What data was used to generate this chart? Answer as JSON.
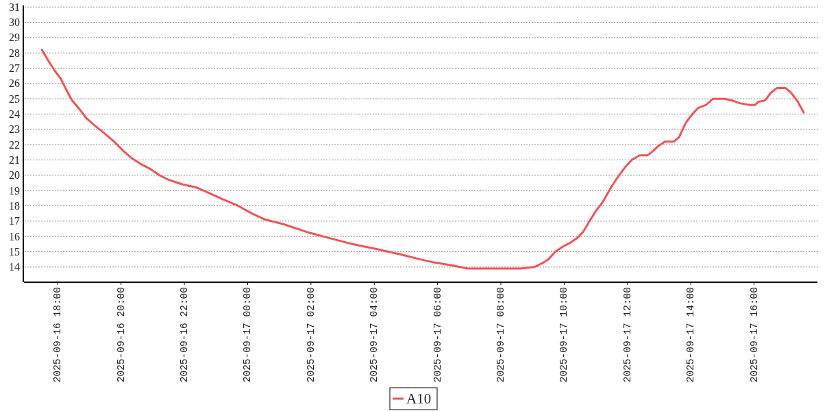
{
  "chart_data": {
    "type": "line",
    "x": [
      "2025-09-16T17:30",
      "2025-09-16T17:42",
      "2025-09-16T17:55",
      "2025-09-16T18:06",
      "2025-09-16T18:16",
      "2025-09-16T18:27",
      "2025-09-16T18:44",
      "2025-09-16T18:55",
      "2025-09-16T19:12",
      "2025-09-16T19:30",
      "2025-09-16T19:47",
      "2025-09-16T20:04",
      "2025-09-16T20:21",
      "2025-09-16T20:39",
      "2025-09-16T20:56",
      "2025-09-16T21:13",
      "2025-09-16T21:30",
      "2025-09-16T21:57",
      "2025-09-16T22:23",
      "2025-09-16T22:49",
      "2025-09-16T23:15",
      "2025-09-16T23:42",
      "2025-09-17T00:08",
      "2025-09-17T00:33",
      "2025-09-17T01:08",
      "2025-09-17T01:51",
      "2025-09-17T02:34",
      "2025-09-17T03:18",
      "2025-09-17T04:01",
      "2025-09-17T04:27",
      "2025-09-17T04:53",
      "2025-09-17T05:27",
      "2025-09-17T05:53",
      "2025-09-17T06:28",
      "2025-09-17T06:57",
      "2025-09-17T07:46",
      "2025-09-17T08:38",
      "2025-09-17T09:04",
      "2025-09-17T09:21",
      "2025-09-17T09:30",
      "2025-09-17T09:43",
      "2025-09-17T09:56",
      "2025-09-17T10:12",
      "2025-09-17T10:25",
      "2025-09-17T10:36",
      "2025-09-17T10:48",
      "2025-09-17T11:01",
      "2025-09-17T11:14",
      "2025-09-17T11:27",
      "2025-09-17T11:40",
      "2025-09-17T11:55",
      "2025-09-17T12:08",
      "2025-09-17T12:23",
      "2025-09-17T12:38",
      "2025-09-17T12:49",
      "2025-09-17T12:58",
      "2025-09-17T13:11",
      "2025-09-17T13:28",
      "2025-09-17T13:38",
      "2025-09-17T13:50",
      "2025-09-17T14:03",
      "2025-09-17T14:14",
      "2025-09-17T14:29",
      "2025-09-17T14:42",
      "2025-09-17T15:04",
      "2025-09-17T15:17",
      "2025-09-17T15:34",
      "2025-09-17T15:51",
      "2025-09-17T16:02",
      "2025-09-17T16:08",
      "2025-09-17T16:21",
      "2025-09-17T16:32",
      "2025-09-17T16:43",
      "2025-09-17T17:00",
      "2025-09-17T17:10",
      "2025-09-17T17:23",
      "2025-09-17T17:34"
    ],
    "series": [
      {
        "name": "A10",
        "color": "#ee5555",
        "values": [
          28.2,
          27.5,
          26.8,
          26.3,
          25.6,
          24.9,
          24.2,
          23.7,
          23.2,
          22.7,
          22.2,
          21.6,
          21.1,
          20.7,
          20.4,
          20.0,
          19.7,
          19.4,
          19.2,
          18.8,
          18.4,
          18.0,
          17.5,
          17.1,
          16.8,
          16.3,
          15.9,
          15.5,
          15.2,
          15.0,
          14.8,
          14.5,
          14.3,
          14.1,
          13.9,
          13.9,
          13.9,
          14.0,
          14.3,
          14.5,
          15.0,
          15.3,
          15.6,
          15.9,
          16.3,
          17.0,
          17.7,
          18.3,
          19.1,
          19.8,
          20.5,
          21.0,
          21.3,
          21.3,
          21.6,
          21.9,
          22.2,
          22.2,
          22.5,
          23.4,
          24.0,
          24.4,
          24.6,
          25.0,
          25.0,
          24.9,
          24.7,
          24.6,
          24.6,
          24.8,
          24.9,
          25.4,
          25.7,
          25.7,
          25.4,
          24.8,
          24.1
        ]
      }
    ],
    "xlim": [
      "2025-09-16T16:56",
      "2025-09-17T18:00"
    ],
    "xticks": [
      {
        "value": "2025-09-16T18:00",
        "label": "2025-09-16 18:00"
      },
      {
        "value": "2025-09-16T20:00",
        "label": "2025-09-16 20:00"
      },
      {
        "value": "2025-09-16T22:00",
        "label": "2025-09-16 22:00"
      },
      {
        "value": "2025-09-17T00:00",
        "label": "2025-09-17 00:00"
      },
      {
        "value": "2025-09-17T02:00",
        "label": "2025-09-17 02:00"
      },
      {
        "value": "2025-09-17T04:00",
        "label": "2025-09-17 04:00"
      },
      {
        "value": "2025-09-17T06:00",
        "label": "2025-09-17 06:00"
      },
      {
        "value": "2025-09-17T08:00",
        "label": "2025-09-17 08:00"
      },
      {
        "value": "2025-09-17T10:00",
        "label": "2025-09-17 10:00"
      },
      {
        "value": "2025-09-17T12:00",
        "label": "2025-09-17 12:00"
      },
      {
        "value": "2025-09-17T14:00",
        "label": "2025-09-17 14:00"
      },
      {
        "value": "2025-09-17T16:00",
        "label": "2025-09-17 16:00"
      }
    ],
    "ylim": [
      13.05,
      31.1
    ],
    "yticks": [
      14,
      15,
      16,
      17,
      18,
      19,
      20,
      21,
      22,
      23,
      24,
      25,
      26,
      27,
      28,
      29,
      30,
      31
    ],
    "grid": "y",
    "legend": "bottom"
  }
}
